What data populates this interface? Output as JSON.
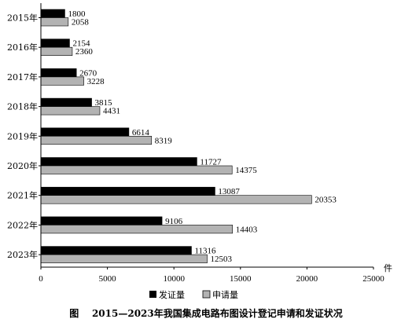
{
  "chart_data": {
    "type": "bar",
    "orientation": "horizontal",
    "categories": [
      "2015年",
      "2016年",
      "2017年",
      "2018年",
      "2019年",
      "2020年",
      "2021年",
      "2022年",
      "2023年"
    ],
    "series": [
      {
        "name": "发证量",
        "color": "#000000",
        "values": [
          1800,
          2154,
          2670,
          3815,
          6614,
          11727,
          13087,
          9106,
          11316
        ]
      },
      {
        "name": "申请量",
        "color": "#b3b3b3",
        "values": [
          2058,
          2360,
          3228,
          4431,
          8319,
          14375,
          20353,
          14403,
          12503
        ]
      }
    ],
    "x_ticks": [
      "0",
      "5000",
      "10000",
      "15000",
      "20000",
      "25000"
    ],
    "xlim": [
      0,
      25000
    ],
    "unit": "件",
    "legend_position": "bottom",
    "grid": false,
    "caption": "图    2015—2023年我国集成电路布图设计登记申请和发证状况"
  }
}
